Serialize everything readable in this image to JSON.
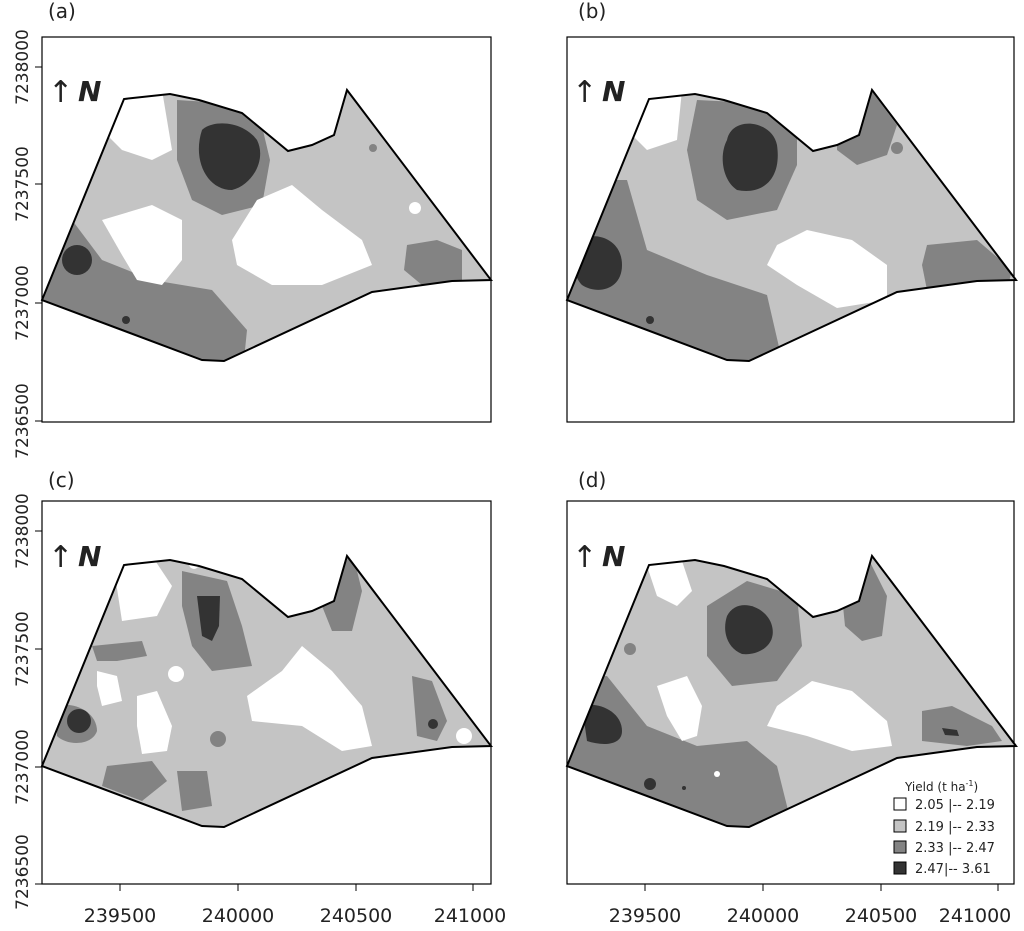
{
  "panels": [
    {
      "label": "(a)",
      "north": "N",
      "arrow": "↑"
    },
    {
      "label": "(b)",
      "north": "N",
      "arrow": "↑"
    },
    {
      "label": "(c)",
      "north": "N",
      "arrow": "↑"
    },
    {
      "label": "(d)",
      "north": "N",
      "arrow": "↑"
    }
  ],
  "axes": {
    "y_ticks": [
      "7238000",
      "7237500",
      "7237000",
      "7236500"
    ],
    "x_ticks": [
      "239500",
      "240000",
      "240500",
      "241000"
    ]
  },
  "legend": {
    "title": "Yield (t ha",
    "title_sup": "-1",
    "title_close": ")",
    "items": [
      {
        "label": "2.05 |-- 2.19",
        "color": "#ffffff"
      },
      {
        "label": "2.19 |-- 2.33",
        "color": "#c4c4c4"
      },
      {
        "label": "2.33 |-- 2.47",
        "color": "#838383"
      },
      {
        "label": "2.47|-- 3.61",
        "color": "#333333"
      }
    ]
  },
  "colors": {
    "class1": "#ffffff",
    "class2": "#c4c4c4",
    "class3": "#838383",
    "class4": "#333333",
    "frame": "#000000"
  }
}
